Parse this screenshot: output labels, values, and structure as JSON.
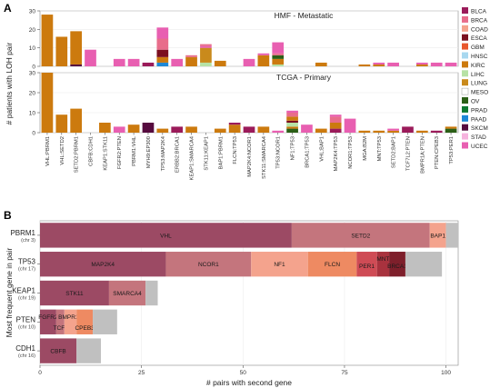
{
  "figure": {
    "panel_a_letter": "A",
    "panel_b_letter": "B"
  },
  "chart_data": [
    {
      "type": "bar",
      "stacked": true,
      "panel": "A",
      "ylabel": "# patients with LOH pair",
      "legend_position": "right",
      "cancer_types": [
        {
          "name": "BLCA",
          "color": "#9b1b5a"
        },
        {
          "name": "BRCA",
          "color": "#e86d8b"
        },
        {
          "name": "COAD",
          "color": "#f4a38d"
        },
        {
          "name": "ESCA",
          "color": "#7b0f1f"
        },
        {
          "name": "GBM",
          "color": "#e8582e"
        },
        {
          "name": "HNSC",
          "color": "#a8d8f0"
        },
        {
          "name": "KIRC",
          "color": "#cc7a0e"
        },
        {
          "name": "LIHC",
          "color": "#b7e2a5"
        },
        {
          "name": "LUNG",
          "color": "#c98a1c"
        },
        {
          "name": "MESO",
          "color": "#ffffff"
        },
        {
          "name": "OV",
          "color": "#2b5f17"
        },
        {
          "name": "PRAD",
          "color": "#0f7a31"
        },
        {
          "name": "PAAD",
          "color": "#1d88d6"
        },
        {
          "name": "SKCM",
          "color": "#560b3f"
        },
        {
          "name": "STAD",
          "color": "#f6b3de"
        },
        {
          "name": "UCEC",
          "color": "#e85fb1"
        }
      ],
      "categories": [
        "VHL:PBRM1",
        "VHL:SETD2",
        "SETD2:PBRM1",
        "CBFB:CDH1",
        "KEAP1:STK11",
        "FGFR2:PTEN",
        "PBRM1:VHL",
        "MYH9:EP300",
        "TP53:MAP2K4",
        "ERBB2:BRCA1",
        "KEAP1:SMARCA4",
        "STK11:KEAP1",
        "BAP1:PBRM1",
        "FLCN:TP53",
        "MAP2K4:NCOR1",
        "STK11:SMARCA4",
        "TP53:NCOR1",
        "NF1:TP53",
        "BRCA1:TP53",
        "VHL:BAP1",
        "MAP2K4:TP53",
        "NCOR1:TP53",
        "MGA:B2M",
        "MNT:TP53",
        "SETD2:BAP1",
        "TCF7L2:PTEN",
        "BMPR1A:PTEN",
        "PTEN:CPEB3",
        "TP53:PER1"
      ],
      "facets": [
        {
          "title": "HMF - Metastatic",
          "ylim": [
            0,
            30
          ],
          "yticks": [
            0,
            10,
            20,
            30
          ],
          "stacks": [
            [
              {
                "type": "KIRC",
                "value": 28
              }
            ],
            [
              {
                "type": "KIRC",
                "value": 16
              }
            ],
            [
              {
                "type": "SKCM",
                "value": 1
              },
              {
                "type": "KIRC",
                "value": 18
              }
            ],
            [
              {
                "type": "UCEC",
                "value": 9
              }
            ],
            [],
            [
              {
                "type": "UCEC",
                "value": 4
              }
            ],
            [
              {
                "type": "UCEC",
                "value": 4
              }
            ],
            [
              {
                "type": "BLCA",
                "value": 2
              }
            ],
            [
              {
                "type": "PAAD",
                "value": 2
              },
              {
                "type": "KIRC",
                "value": 3
              },
              {
                "type": "ESCA",
                "value": 4
              },
              {
                "type": "BRCA",
                "value": 6
              },
              {
                "type": "UCEC",
                "value": 6
              }
            ],
            [
              {
                "type": "UCEC",
                "value": 4
              }
            ],
            [
              {
                "type": "KIRC",
                "value": 5
              },
              {
                "type": "BRCA",
                "value": 1
              }
            ],
            [
              {
                "type": "LIHC",
                "value": 2
              },
              {
                "type": "LUNG",
                "value": 8
              },
              {
                "type": "UCEC",
                "value": 1
              },
              {
                "type": "BRCA",
                "value": 1
              }
            ],
            [
              {
                "type": "KIRC",
                "value": 3
              }
            ],
            [],
            [
              {
                "type": "UCEC",
                "value": 4
              }
            ],
            [
              {
                "type": "KIRC",
                "value": 6
              },
              {
                "type": "UCEC",
                "value": 1
              }
            ],
            [
              {
                "type": "LIHC",
                "value": 1
              },
              {
                "type": "KIRC",
                "value": 3
              },
              {
                "type": "OV",
                "value": 2
              },
              {
                "type": "BRCA",
                "value": 1
              },
              {
                "type": "UCEC",
                "value": 6
              }
            ],
            [],
            [],
            [
              {
                "type": "KIRC",
                "value": 2
              }
            ],
            [],
            [],
            [
              {
                "type": "KIRC",
                "value": 1
              }
            ],
            [
              {
                "type": "KIRC",
                "value": 1
              },
              {
                "type": "UCEC",
                "value": 1
              }
            ],
            [
              {
                "type": "UCEC",
                "value": 2
              }
            ],
            [],
            [
              {
                "type": "KIRC",
                "value": 1
              },
              {
                "type": "UCEC",
                "value": 1
              }
            ],
            [
              {
                "type": "UCEC",
                "value": 2
              }
            ],
            [
              {
                "type": "UCEC",
                "value": 2
              }
            ]
          ]
        },
        {
          "title": "TCGA - Primary",
          "ylim": [
            0,
            30
          ],
          "yticks": [
            0,
            10,
            20,
            30
          ],
          "stacks": [
            [
              {
                "type": "KIRC",
                "value": 30
              }
            ],
            [
              {
                "type": "KIRC",
                "value": 9
              }
            ],
            [
              {
                "type": "KIRC",
                "value": 12
              }
            ],
            [],
            [
              {
                "type": "KIRC",
                "value": 5
              }
            ],
            [
              {
                "type": "UCEC",
                "value": 3
              }
            ],
            [
              {
                "type": "KIRC",
                "value": 4
              }
            ],
            [
              {
                "type": "SKCM",
                "value": 5
              }
            ],
            [
              {
                "type": "KIRC",
                "value": 2
              }
            ],
            [
              {
                "type": "BLCA",
                "value": 3
              }
            ],
            [
              {
                "type": "KIRC",
                "value": 3
              }
            ],
            [],
            [
              {
                "type": "KIRC",
                "value": 2
              }
            ],
            [
              {
                "type": "KIRC",
                "value": 4
              },
              {
                "type": "BLCA",
                "value": 1
              }
            ],
            [
              {
                "type": "BLCA",
                "value": 3
              }
            ],
            [
              {
                "type": "KIRC",
                "value": 3
              }
            ],
            [
              {
                "type": "UCEC",
                "value": 1
              }
            ],
            [
              {
                "type": "OV",
                "value": 2
              },
              {
                "type": "KIRC",
                "value": 1
              },
              {
                "type": "LIHC",
                "value": 2
              },
              {
                "type": "ESCA",
                "value": 1
              },
              {
                "type": "KIRC",
                "value": 2
              },
              {
                "type": "BRCA",
                "value": 2
              },
              {
                "type": "UCEC",
                "value": 1
              }
            ],
            [
              {
                "type": "UCEC",
                "value": 4
              }
            ],
            [
              {
                "type": "KIRC",
                "value": 2
              }
            ],
            [
              {
                "type": "BLCA",
                "value": 2
              },
              {
                "type": "KIRC",
                "value": 3
              },
              {
                "type": "BRCA",
                "value": 3
              },
              {
                "type": "UCEC",
                "value": 1
              }
            ],
            [
              {
                "type": "UCEC",
                "value": 7
              }
            ],
            [
              {
                "type": "KIRC",
                "value": 1
              }
            ],
            [
              {
                "type": "KIRC",
                "value": 1
              }
            ],
            [
              {
                "type": "KIRC",
                "value": 1
              },
              {
                "type": "UCEC",
                "value": 1
              }
            ],
            [
              {
                "type": "BLCA",
                "value": 3
              }
            ],
            [
              {
                "type": "KIRC",
                "value": 1
              }
            ],
            [
              {
                "type": "BLCA",
                "value": 1
              }
            ],
            [
              {
                "type": "OV",
                "value": 2
              },
              {
                "type": "KIRC",
                "value": 1
              }
            ]
          ]
        }
      ]
    },
    {
      "type": "bar",
      "orientation": "horizontal",
      "stacked": true,
      "panel": "B",
      "xlabel": "# pairs with second gene",
      "ylabel": "Most frequent gene in pair",
      "xlim": [
        0,
        103
      ],
      "xticks": [
        0,
        25,
        50,
        75,
        100
      ],
      "grid": true,
      "rows": [
        {
          "gene": "PBRM1",
          "chr": "(chr 3)",
          "segments": [
            {
              "label": "VHL",
              "value": 62,
              "color": "#9c4a64"
            },
            {
              "label": "SETD2",
              "value": 34,
              "color": "#c4757d"
            },
            {
              "label": "BAP1",
              "value": 4,
              "color": "#f4a38d"
            },
            {
              "label": "",
              "value": 3,
              "color": "#c0c0c0"
            }
          ]
        },
        {
          "gene": "TP53",
          "chr": "(chr 17)",
          "segments": [
            {
              "label": "MAP2K4",
              "value": 31,
              "color": "#9c4a64"
            },
            {
              "label": "NCOR1",
              "value": 21,
              "color": "#c4757d"
            },
            {
              "label": "NF1",
              "value": 14,
              "color": "#f4a38d"
            },
            {
              "label": "FLCN",
              "value": 12,
              "color": "#ee8a62"
            },
            {
              "label": "PER1",
              "value": 5,
              "color": "#cf4b55"
            },
            {
              "label": "MNT",
              "value": 3,
              "color": "#a8323e"
            },
            {
              "label": "BRCA1",
              "value": 4,
              "color": "#7e1f2b"
            },
            {
              "label": "",
              "value": 9,
              "color": "#c0c0c0"
            }
          ]
        },
        {
          "gene": "KEAP1",
          "chr": "(chr 19)",
          "segments": [
            {
              "label": "STK11",
              "value": 17,
              "color": "#9c4a64"
            },
            {
              "label": "SMARCA4",
              "value": 9,
              "color": "#c4757d"
            },
            {
              "label": "",
              "value": 3,
              "color": "#c0c0c0"
            }
          ]
        },
        {
          "gene": "PTEN",
          "chr": "(chr 10)",
          "segments": [
            {
              "label": "FGFR2",
              "value": 4,
              "color": "#9c4a64"
            },
            {
              "label": "TCF7L2",
              "value": 2,
              "color": "#c4757d"
            },
            {
              "label": "BMPR1A",
              "value": 3,
              "color": "#f4a38d"
            },
            {
              "label": "CPEB3",
              "value": 4,
              "color": "#ee8a62"
            },
            {
              "label": "",
              "value": 6,
              "color": "#c0c0c0"
            }
          ]
        },
        {
          "gene": "CDH1",
          "chr": "(chr 16)",
          "segments": [
            {
              "label": "CBFB",
              "value": 9,
              "color": "#9c4a64"
            },
            {
              "label": "",
              "value": 6,
              "color": "#c0c0c0"
            }
          ]
        }
      ]
    }
  ]
}
